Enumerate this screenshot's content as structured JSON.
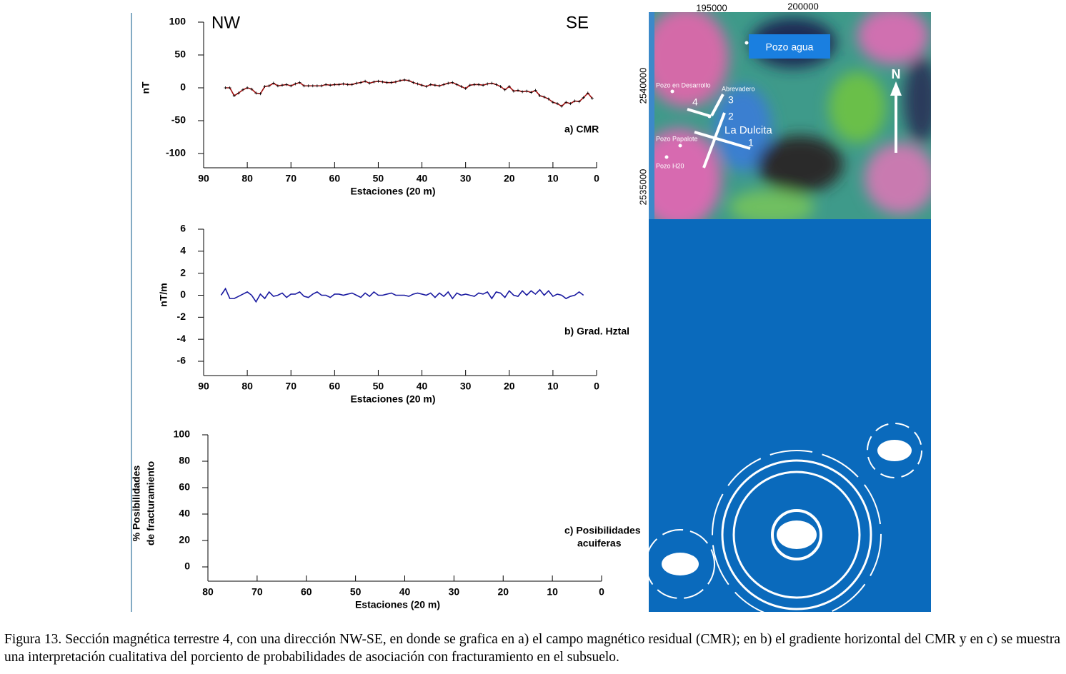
{
  "chart_data": [
    {
      "type": "line",
      "left_label": "NW",
      "right_label": "SE",
      "y_label": "nT",
      "x_label": "Estaciones (20 m)",
      "annotation": "a) CMR",
      "xlim": [
        90,
        0
      ],
      "xticks": [
        90,
        80,
        70,
        60,
        50,
        40,
        30,
        20,
        10,
        0
      ],
      "ylim": [
        -100,
        100
      ],
      "yticks": [
        -100,
        -50,
        0,
        50,
        100
      ],
      "grid": false,
      "x": [
        85,
        84,
        83,
        82,
        81,
        80,
        79,
        78,
        77,
        76,
        75,
        74,
        73,
        72,
        71,
        70,
        69,
        68,
        67,
        66,
        65,
        64,
        63,
        62,
        61,
        60,
        59,
        58,
        57,
        56,
        55,
        54,
        53,
        52,
        51,
        50,
        49,
        48,
        47,
        46,
        45,
        44,
        43,
        42,
        41,
        40,
        39,
        38,
        37,
        36,
        35,
        34,
        33,
        32,
        31,
        30,
        29,
        28,
        27,
        26,
        25,
        24,
        23,
        22,
        21,
        20,
        19,
        18,
        17,
        16,
        15,
        14,
        13,
        12,
        11,
        10,
        9,
        8,
        7,
        6,
        5,
        4,
        3,
        2,
        1
      ],
      "series": [
        {
          "color": "#a01010",
          "marker_color": "#000000",
          "values": [
            0,
            0,
            -12,
            -8,
            -3,
            0,
            -2,
            -8,
            -9,
            2,
            3,
            7,
            3,
            4,
            5,
            3,
            6,
            8,
            3,
            3,
            3,
            3,
            3,
            5,
            4,
            5,
            5,
            6,
            5,
            5,
            7,
            8,
            10,
            7,
            9,
            10,
            9,
            8,
            8,
            9,
            11,
            12,
            11,
            8,
            6,
            4,
            2,
            5,
            4,
            3,
            5,
            7,
            8,
            5,
            2,
            -1,
            4,
            5,
            5,
            4,
            6,
            7,
            5,
            2,
            -3,
            2,
            -5,
            -4,
            -6,
            -5,
            -7,
            -4,
            -12,
            -14,
            -17,
            -22,
            -24,
            -28,
            -22,
            -24,
            -20,
            -21,
            -15,
            -8,
            -16
          ]
        }
      ]
    },
    {
      "type": "line",
      "y_label": "nT/m",
      "x_label": "Estaciones (20 m)",
      "annotation": "b) Grad. Hztal",
      "xlim": [
        90,
        0
      ],
      "xticks": [
        90,
        80,
        70,
        60,
        50,
        40,
        30,
        20,
        10,
        0
      ],
      "ylim": [
        -6,
        6
      ],
      "yticks": [
        -6,
        -4,
        -2,
        0,
        2,
        4,
        6
      ],
      "grid": false,
      "x": [
        86,
        85,
        84,
        83,
        82,
        81,
        80,
        79,
        78,
        77,
        76,
        75,
        74,
        73,
        72,
        71,
        70,
        69,
        68,
        67,
        66,
        65,
        64,
        63,
        62,
        61,
        60,
        59,
        58,
        57,
        56,
        55,
        54,
        53,
        52,
        51,
        50,
        49,
        48,
        47,
        46,
        45,
        44,
        43,
        42,
        41,
        40,
        39,
        38,
        37,
        36,
        35,
        34,
        33,
        32,
        31,
        30,
        29,
        28,
        27,
        26,
        25,
        24,
        23,
        22,
        21,
        20,
        19,
        18,
        17,
        16,
        15,
        14,
        13,
        12,
        11,
        10,
        9,
        8,
        7,
        6,
        5,
        4,
        3
      ],
      "series": [
        {
          "color": "#1a1aa0",
          "values": [
            0,
            0.6,
            -0.3,
            -0.3,
            -0.1,
            0.1,
            0.3,
            0,
            -0.6,
            0.1,
            -0.3,
            0.3,
            -0.1,
            0,
            0.2,
            -0.2,
            0.1,
            0.1,
            0.3,
            -0.1,
            -0.2,
            0.1,
            0.3,
            0,
            0,
            -0.2,
            0.1,
            0.1,
            0,
            0.1,
            0.2,
            0,
            -0.2,
            0.2,
            -0.1,
            0.3,
            0,
            0,
            0.1,
            0.2,
            0,
            0,
            0,
            -0.1,
            0.1,
            0.2,
            0.1,
            0,
            0.2,
            -0.2,
            0.2,
            -0.1,
            0.3,
            -0.3,
            0.2,
            0,
            0.1,
            0,
            -0.1,
            0.2,
            0.1,
            0.3,
            -0.3,
            0.3,
            0.2,
            -0.2,
            0.4,
            0,
            -0.1,
            0.4,
            0,
            0.4,
            0.1,
            0.5,
            0,
            0.4,
            -0.1,
            0.1,
            0,
            -0.3,
            -0.1,
            0,
            0.3,
            0
          ]
        }
      ]
    },
    {
      "type": "line",
      "y_label": [
        "% Posibilidades",
        "de fracturamiento"
      ],
      "x_label": "Estaciones (20 m)",
      "annotation": [
        "c) Posibilidades",
        "acuiferas"
      ],
      "xlim": [
        80,
        0
      ],
      "xticks": [
        80,
        70,
        60,
        50,
        40,
        30,
        20,
        10,
        0
      ],
      "ylim": [
        0,
        100
      ],
      "yticks": [
        0,
        20,
        40,
        60,
        80,
        100
      ],
      "grid": false
    }
  ],
  "map": {
    "x_coords": [
      "195000",
      "200000"
    ],
    "y_coords": [
      "2540000",
      "2535000"
    ],
    "pozo_agua": "Pozo  agua",
    "north": "N",
    "wells": [
      "Pozo en Desarrollo",
      "Abrevadero",
      "Pozo Papalote",
      "Pozo H20"
    ],
    "site": "La Dulcita",
    "profiles": [
      "1",
      "2",
      "3",
      "4"
    ]
  },
  "caption": "Figura 13. Sección magnética terrestre 4, con una dirección NW-SE, en donde se grafica en a) el campo magnético residual (CMR); en b) el gradiente horizontal del CMR y en c) se muestra una interpretación cualitativa del porciento de probabilidades de asociación con fracturamiento en el subsuelo."
}
